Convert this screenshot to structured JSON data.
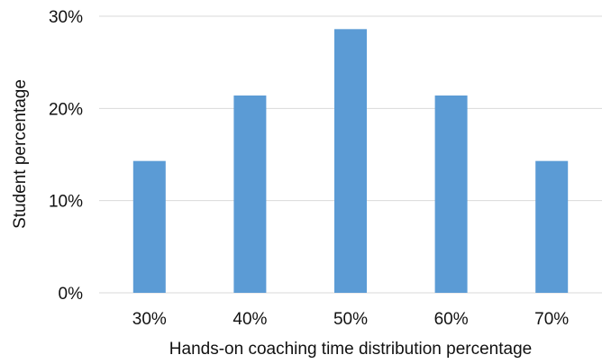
{
  "chart_data": {
    "type": "bar",
    "categories": [
      "30%",
      "40%",
      "50%",
      "60%",
      "70%"
    ],
    "values": [
      14.3,
      21.4,
      28.6,
      21.4,
      14.3
    ],
    "title": "",
    "xlabel": "Hands-on coaching time distribution percentage",
    "ylabel": "Student percentage",
    "ylim": [
      0,
      30
    ],
    "yticks": [
      {
        "value": 0,
        "label": "0%"
      },
      {
        "value": 10,
        "label": "10%"
      },
      {
        "value": 20,
        "label": "20%"
      },
      {
        "value": 30,
        "label": "30%"
      }
    ],
    "grid": true,
    "legend": "none",
    "colors": {
      "bar": "#5b9bd5",
      "grid": "#d9d9d9",
      "text": "#111111"
    }
  }
}
